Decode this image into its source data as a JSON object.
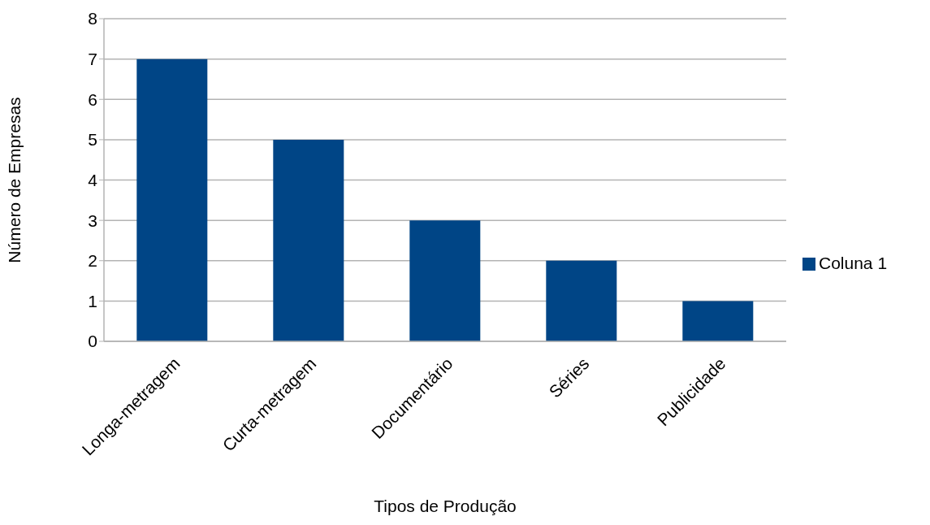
{
  "chart_data": {
    "type": "bar",
    "xlabel": "Tipos de Produção",
    "ylabel": "Número de Empresas",
    "categories": [
      "Longa-metragem",
      "Curta-metragem",
      "Documentário",
      "Séries",
      "Publicidade"
    ],
    "series": [
      {
        "name": "Coluna 1",
        "color": "#004586",
        "values": [
          7,
          5,
          3,
          2,
          1
        ]
      }
    ],
    "ylim": [
      0,
      8
    ],
    "yticks": [
      0,
      1,
      2,
      3,
      4,
      5,
      6,
      7,
      8
    ],
    "grid": "y",
    "legend": "right"
  }
}
